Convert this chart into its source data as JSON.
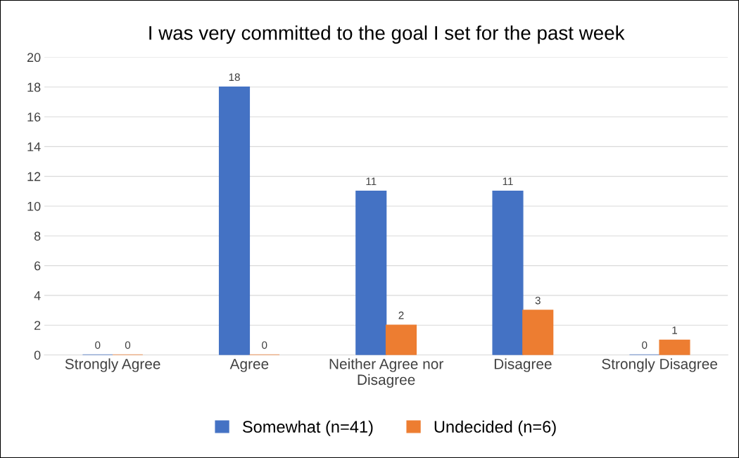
{
  "chart_data": {
    "type": "bar",
    "title": "I was very committed to the goal I set for the past week",
    "categories": [
      "Strongly Agree",
      "Agree",
      "Neither Agree nor Disagree",
      "Disagree",
      "Strongly Disagree"
    ],
    "series": [
      {
        "name": "Somewhat (n=41)",
        "color": "#4472c4",
        "values": [
          0,
          18,
          11,
          11,
          0
        ]
      },
      {
        "name": "Undecided (n=6)",
        "color": "#ed7d31",
        "values": [
          0,
          0,
          2,
          3,
          1
        ]
      }
    ],
    "ylim": [
      0,
      20
    ],
    "yticks": [
      0,
      2,
      4,
      6,
      8,
      10,
      12,
      14,
      16,
      18,
      20
    ],
    "grid": "y",
    "legend": "bottom",
    "data_labels": true
  }
}
